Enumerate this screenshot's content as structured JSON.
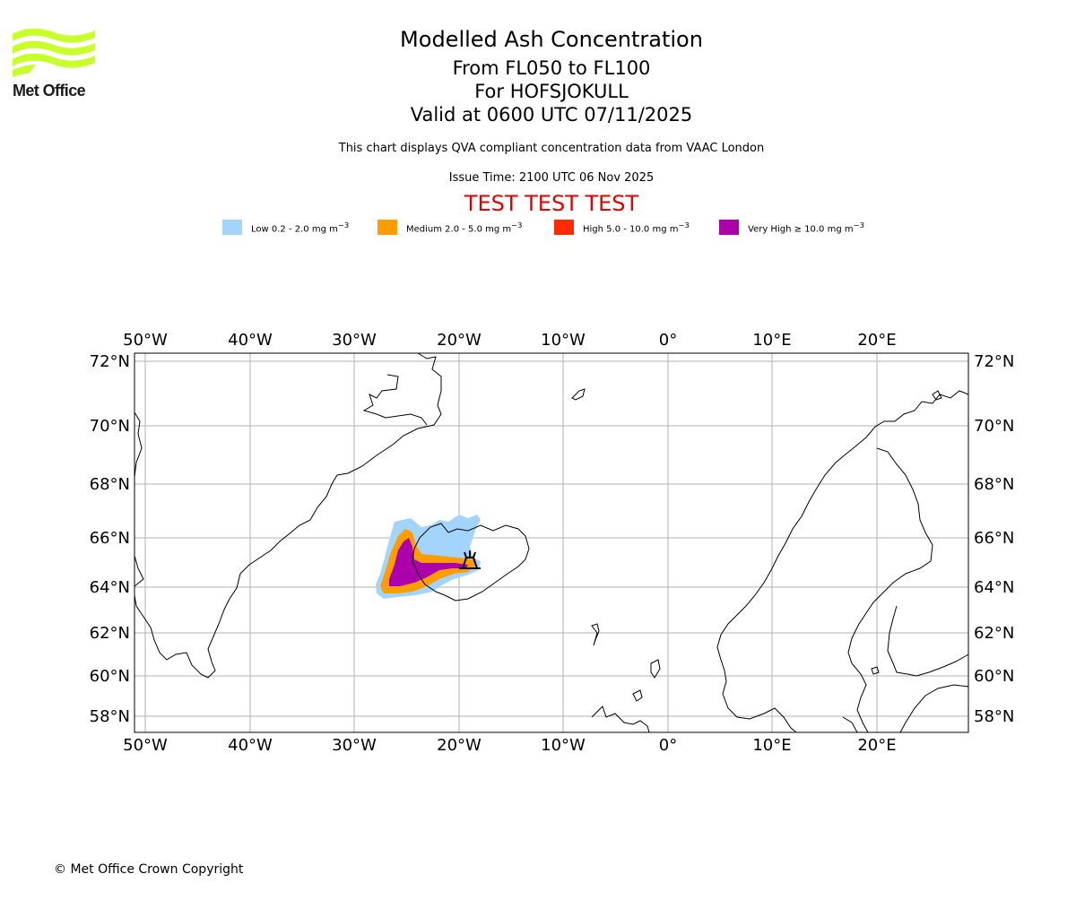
{
  "logo": {
    "brand_text": "Met Office",
    "color": "#c8ff2a"
  },
  "header": {
    "title": "Modelled Ash Concentration",
    "flight_levels": "From FL050 to FL100",
    "volcano": "For HOFSJOKULL",
    "valid_time": "Valid at 0600 UTC 07/11/2025",
    "description": "This chart displays QVA compliant concentration data from VAAC London",
    "issue_time": "Issue Time: 2100 UTC 06 Nov 2025",
    "test_banner": "TEST TEST TEST",
    "test_color": "#e00000"
  },
  "legend": [
    {
      "label": "Low 0.2 - 2.0 mg m",
      "unit_exp": "−3",
      "color": "#a3d4fc"
    },
    {
      "label": "Medium 2.0 - 5.0 mg m",
      "unit_exp": "−3",
      "color": "#ff9c00"
    },
    {
      "label": "High 5.0 - 10.0 mg m",
      "unit_exp": "−3",
      "color": "#ff2a00"
    },
    {
      "label": "Very High  ≥  10.0 mg m",
      "unit_exp": "−3",
      "color": "#ad00ad"
    }
  ],
  "map": {
    "lon_labels": [
      "50°W",
      "40°W",
      "30°W",
      "20°W",
      "10°W",
      "0°",
      "10°E",
      "20°E"
    ],
    "lat_labels": [
      "72°N",
      "70°N",
      "68°N",
      "66°N",
      "64°N",
      "62°N",
      "60°N",
      "58°N"
    ],
    "volcano_marker": "volcano-symbol"
  },
  "footer": {
    "copyright": "© Met Office Crown Copyright"
  }
}
